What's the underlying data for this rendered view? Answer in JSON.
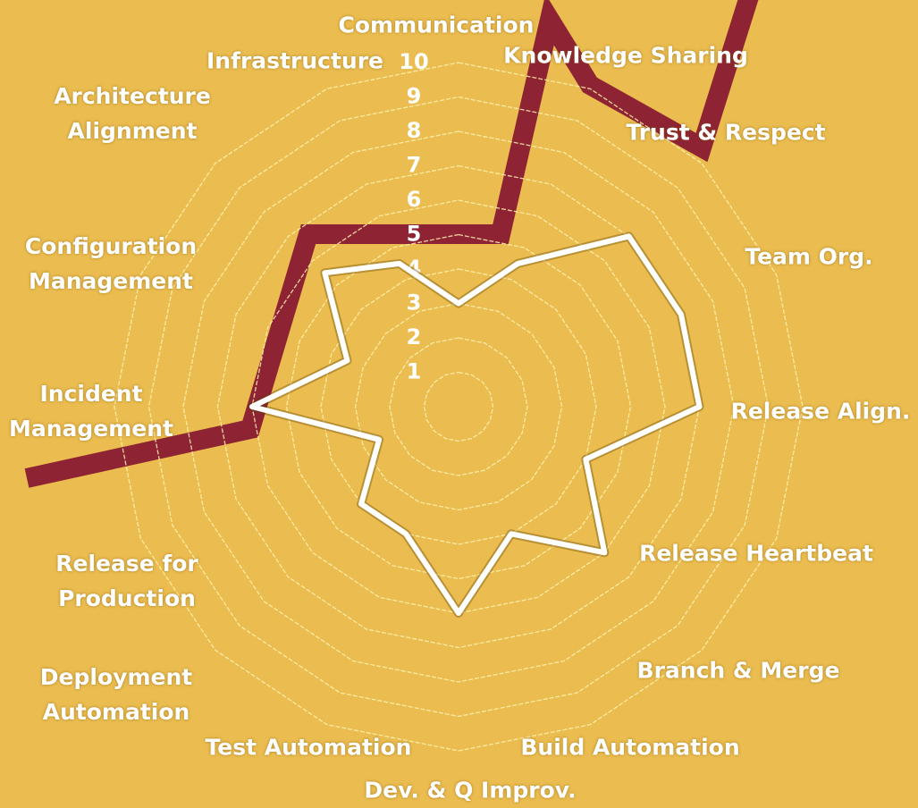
{
  "chart_data": {
    "type": "radar",
    "categories": [
      "Communication",
      "Knowledge Sharing",
      "Trust & Respect",
      "Team Org.",
      "Release Align.",
      "Release Heartbeat",
      "Branch & Merge",
      "Build Automation",
      "Dev. & Q Improv.",
      "Test Automation",
      "Deployment Automation",
      "Release for Production",
      "Incident Management",
      "Configuration Management",
      "Architecture Alignment",
      "Infrastructure"
    ],
    "values": [
      3,
      4.5,
      7,
      7,
      7,
      4,
      6,
      4,
      6,
      4,
      4,
      2.5,
      6,
      3.5,
      5.5,
      4.5
    ],
    "color": "#ffffff",
    "rlim": [
      0,
      10
    ],
    "rticks": [
      1,
      2,
      3,
      4,
      5,
      6,
      7,
      8,
      9,
      10
    ],
    "grid": true
  }
}
